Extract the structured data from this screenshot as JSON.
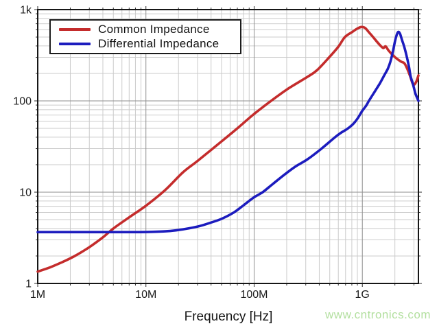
{
  "chart_data": {
    "type": "line",
    "title": "",
    "xlabel": "Frequency [Hz]",
    "ylabel": "",
    "x_scale": "log",
    "y_scale": "log",
    "xlim": [
      1000000,
      3300000000
    ],
    "ylim": [
      1,
      1000
    ],
    "grid": "log major + minor, both axes",
    "legend_position": "top-left",
    "x_ticks": [
      {
        "value": 1000000,
        "label": "1M"
      },
      {
        "value": 10000000,
        "label": "10M"
      },
      {
        "value": 100000000,
        "label": "100M"
      },
      {
        "value": 1000000000,
        "label": "1G"
      }
    ],
    "y_ticks": [
      {
        "value": 1,
        "label": "1"
      },
      {
        "value": 10,
        "label": "10"
      },
      {
        "value": 100,
        "label": "100"
      },
      {
        "value": 1000,
        "label": "1k"
      }
    ],
    "series": [
      {
        "name": "Common Impedance",
        "color": "#c42c2c",
        "points": [
          [
            1000000,
            1.35
          ],
          [
            1300000,
            1.5
          ],
          [
            1700000,
            1.72
          ],
          [
            2200000,
            2.0
          ],
          [
            3000000,
            2.5
          ],
          [
            4000000,
            3.2
          ],
          [
            5000000,
            4.0
          ],
          [
            7000000,
            5.3
          ],
          [
            10000000,
            7.1
          ],
          [
            15000000,
            10.5
          ],
          [
            22000000,
            16.5
          ],
          [
            30000000,
            22
          ],
          [
            50000000,
            36
          ],
          [
            70000000,
            50
          ],
          [
            100000000,
            72
          ],
          [
            150000000,
            104
          ],
          [
            210000000,
            138
          ],
          [
            310000000,
            183
          ],
          [
            380000000,
            216
          ],
          [
            500000000,
            305
          ],
          [
            600000000,
            392
          ],
          [
            690000000,
            500
          ],
          [
            800000000,
            565
          ],
          [
            900000000,
            620
          ],
          [
            980000000,
            645
          ],
          [
            1060000000,
            630
          ],
          [
            1150000000,
            565
          ],
          [
            1250000000,
            505
          ],
          [
            1350000000,
            452
          ],
          [
            1450000000,
            410
          ],
          [
            1560000000,
            380
          ],
          [
            1640000000,
            396
          ],
          [
            1730000000,
            362
          ],
          [
            1850000000,
            330
          ],
          [
            2000000000,
            302
          ],
          [
            2150000000,
            282
          ],
          [
            2300000000,
            268
          ],
          [
            2450000000,
            258
          ],
          [
            2600000000,
            225
          ],
          [
            2750000000,
            190
          ],
          [
            2900000000,
            158
          ],
          [
            3000000000,
            150
          ],
          [
            3150000000,
            162
          ],
          [
            3300000000,
            190
          ]
        ]
      },
      {
        "name": "Differential Impedance",
        "color": "#1c1cbe",
        "points": [
          [
            1000000,
            3.65
          ],
          [
            2000000,
            3.65
          ],
          [
            4000000,
            3.65
          ],
          [
            7000000,
            3.65
          ],
          [
            10000000,
            3.66
          ],
          [
            15000000,
            3.72
          ],
          [
            20000000,
            3.85
          ],
          [
            30000000,
            4.2
          ],
          [
            40000000,
            4.65
          ],
          [
            50000000,
            5.1
          ],
          [
            65000000,
            6.0
          ],
          [
            80000000,
            7.2
          ],
          [
            100000000,
            8.8
          ],
          [
            120000000,
            10
          ],
          [
            150000000,
            12.4
          ],
          [
            190000000,
            15.5
          ],
          [
            240000000,
            19
          ],
          [
            313000000,
            23
          ],
          [
            420000000,
            30
          ],
          [
            560000000,
            40
          ],
          [
            640000000,
            45
          ],
          [
            720000000,
            49
          ],
          [
            825000000,
            56
          ],
          [
            910000000,
            65
          ],
          [
            1000000000,
            78
          ],
          [
            1080000000,
            88
          ],
          [
            1150000000,
            100
          ],
          [
            1300000000,
            126
          ],
          [
            1450000000,
            155
          ],
          [
            1600000000,
            192
          ],
          [
            1720000000,
            225
          ],
          [
            1820000000,
            270
          ],
          [
            1920000000,
            350
          ],
          [
            2000000000,
            445
          ],
          [
            2080000000,
            530
          ],
          [
            2150000000,
            570
          ],
          [
            2230000000,
            545
          ],
          [
            2320000000,
            470
          ],
          [
            2450000000,
            385
          ],
          [
            2600000000,
            290
          ],
          [
            2700000000,
            235
          ],
          [
            2800000000,
            185
          ],
          [
            2950000000,
            150
          ],
          [
            3100000000,
            120
          ],
          [
            3300000000,
            100
          ]
        ]
      }
    ]
  },
  "watermark": {
    "text": "www.cntronics.com",
    "color": "#b2df9e"
  },
  "style_colors": {
    "minor_grid": "#cbcbcb",
    "major_grid": "#8e8e8e",
    "axis_border": "#161616",
    "tick": "#2a2a2a",
    "tick_label": "#1c1c1c"
  }
}
